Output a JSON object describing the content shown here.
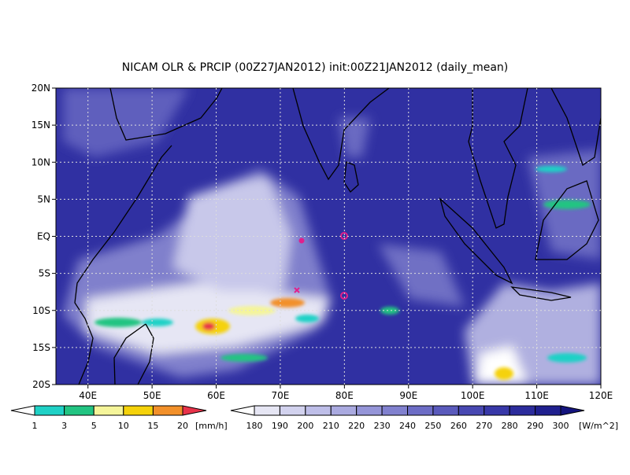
{
  "map": {
    "title": "NICAM OLR & PRCIP (00Z27JAN2012) init:00Z21JAN2012 (daily_mean)",
    "lon_range": [
      35,
      120
    ],
    "lat_range": [
      -20,
      20
    ],
    "lon_ticks": [
      {
        "value": 40,
        "label": "40E"
      },
      {
        "value": 50,
        "label": "50E"
      },
      {
        "value": 60,
        "label": "60E"
      },
      {
        "value": 70,
        "label": "70E"
      },
      {
        "value": 80,
        "label": "80E"
      },
      {
        "value": 90,
        "label": "90E"
      },
      {
        "value": 100,
        "label": "100E"
      },
      {
        "value": 110,
        "label": "110E"
      },
      {
        "value": 120,
        "label": "120E"
      }
    ],
    "lat_ticks": [
      {
        "value": 20,
        "label": "20N"
      },
      {
        "value": 15,
        "label": "15N"
      },
      {
        "value": 10,
        "label": "10N"
      },
      {
        "value": 5,
        "label": "5N"
      },
      {
        "value": 0,
        "label": "EQ"
      },
      {
        "value": -5,
        "label": "5S"
      },
      {
        "value": -10,
        "label": "10S"
      },
      {
        "value": -15,
        "label": "15S"
      },
      {
        "value": -20,
        "label": "20S"
      }
    ],
    "precip_legend": {
      "levels": [
        1,
        3,
        5,
        10,
        15,
        20
      ],
      "unit": "[mm/h]",
      "colors": [
        "#ffffff",
        "#1fd1c6",
        "#22c482",
        "#f5f59a",
        "#f5d20a",
        "#f2902a",
        "#e8334a"
      ]
    },
    "olr_legend": {
      "levels": [
        180,
        190,
        200,
        210,
        220,
        230,
        240,
        250,
        260,
        270,
        280,
        290,
        300
      ],
      "unit": "[W/m^2]",
      "colors": [
        "#ffffff",
        "#e6e6f4",
        "#d2d2ee",
        "#bebee8",
        "#aaaae0",
        "#9595d8",
        "#8181cf",
        "#6d6dc6",
        "#5a5abc",
        "#4848b2",
        "#3838a8",
        "#2c2c9c",
        "#20208f",
        "#14147e"
      ]
    }
  }
}
